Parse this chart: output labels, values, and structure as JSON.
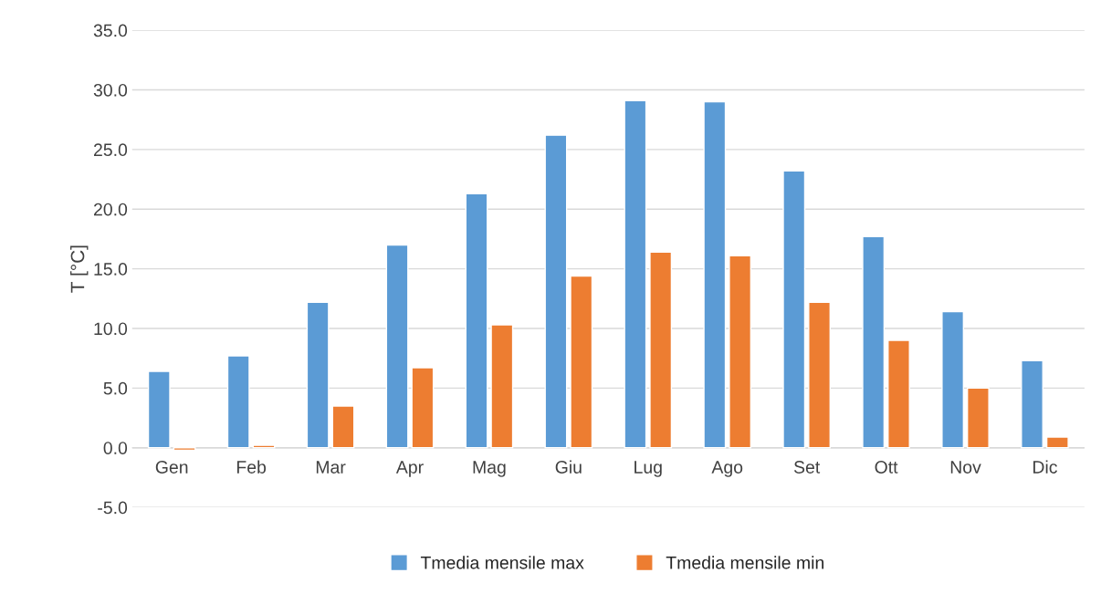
{
  "chart_data": {
    "type": "bar",
    "ylabel": "T [°C]",
    "categories": [
      "Gen",
      "Feb",
      "Mar",
      "Apr",
      "Mag",
      "Giu",
      "Lug",
      "Ago",
      "Set",
      "Ott",
      "Nov",
      "Dic"
    ],
    "series": [
      {
        "name": "Tmedia mensile max",
        "color": "#5b9bd5",
        "values": [
          6.4,
          7.7,
          12.2,
          17.0,
          21.3,
          26.2,
          29.1,
          29.0,
          23.2,
          17.7,
          11.4,
          7.3
        ]
      },
      {
        "name": "Tmedia mensile min",
        "color": "#ed7d31",
        "values": [
          -0.2,
          0.2,
          3.5,
          6.7,
          10.3,
          14.4,
          16.4,
          16.1,
          12.2,
          9.0,
          5.0,
          0.9
        ]
      }
    ],
    "ylim": [
      -5,
      35
    ],
    "yticks": [
      {
        "value": -5,
        "label": "-5.0"
      },
      {
        "value": 0,
        "label": "0.0"
      },
      {
        "value": 5,
        "label": "5.0"
      },
      {
        "value": 10,
        "label": "10.0"
      },
      {
        "value": 15,
        "label": "15.0"
      },
      {
        "value": 20,
        "label": "20.0"
      },
      {
        "value": 25,
        "label": "25.0"
      },
      {
        "value": 30,
        "label": "30.0"
      },
      {
        "value": 35,
        "label": "35.0"
      }
    ],
    "grid": "y",
    "legend": "bottom"
  }
}
